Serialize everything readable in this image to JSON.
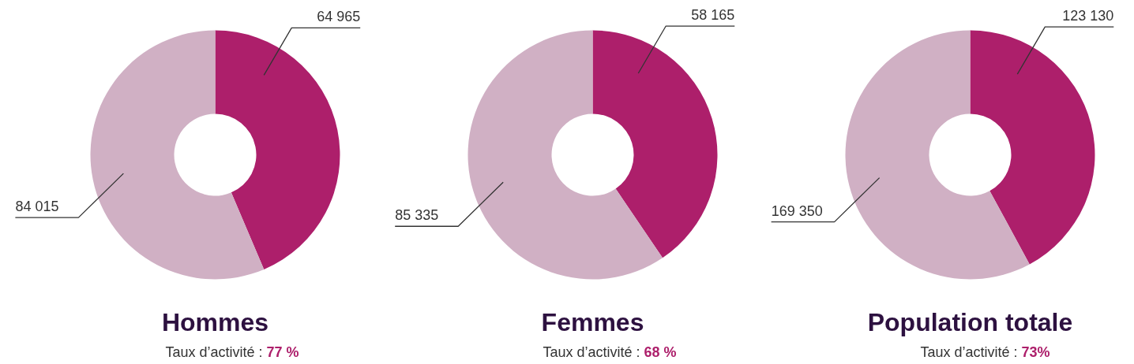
{
  "chart_data": [
    {
      "type": "donut",
      "title": "Hommes",
      "subtitle": "Taux d’activité :",
      "annotations": [
        "77 %"
      ],
      "categories": [
        null,
        null
      ],
      "values": [
        64965,
        84015
      ],
      "colors": [
        "#ad1f6b",
        "#d0b0c4"
      ],
      "data_labels": true
    },
    {
      "type": "donut",
      "title": "Femmes",
      "subtitle": "Taux d’activité :",
      "annotations": [
        "68 %"
      ],
      "categories": [
        null,
        null
      ],
      "values": [
        58165,
        85335
      ],
      "colors": [
        "#ad1f6b",
        "#d0b0c4"
      ],
      "data_labels": true
    },
    {
      "type": "donut",
      "title": "Population totale",
      "subtitle": "Taux d’activité :",
      "annotations": [
        "73%"
      ],
      "categories": [
        null,
        null
      ],
      "values": [
        123130,
        169350
      ],
      "colors": [
        "#ad1f6b",
        "#d0b0c4"
      ],
      "data_labels": true
    }
  ]
}
